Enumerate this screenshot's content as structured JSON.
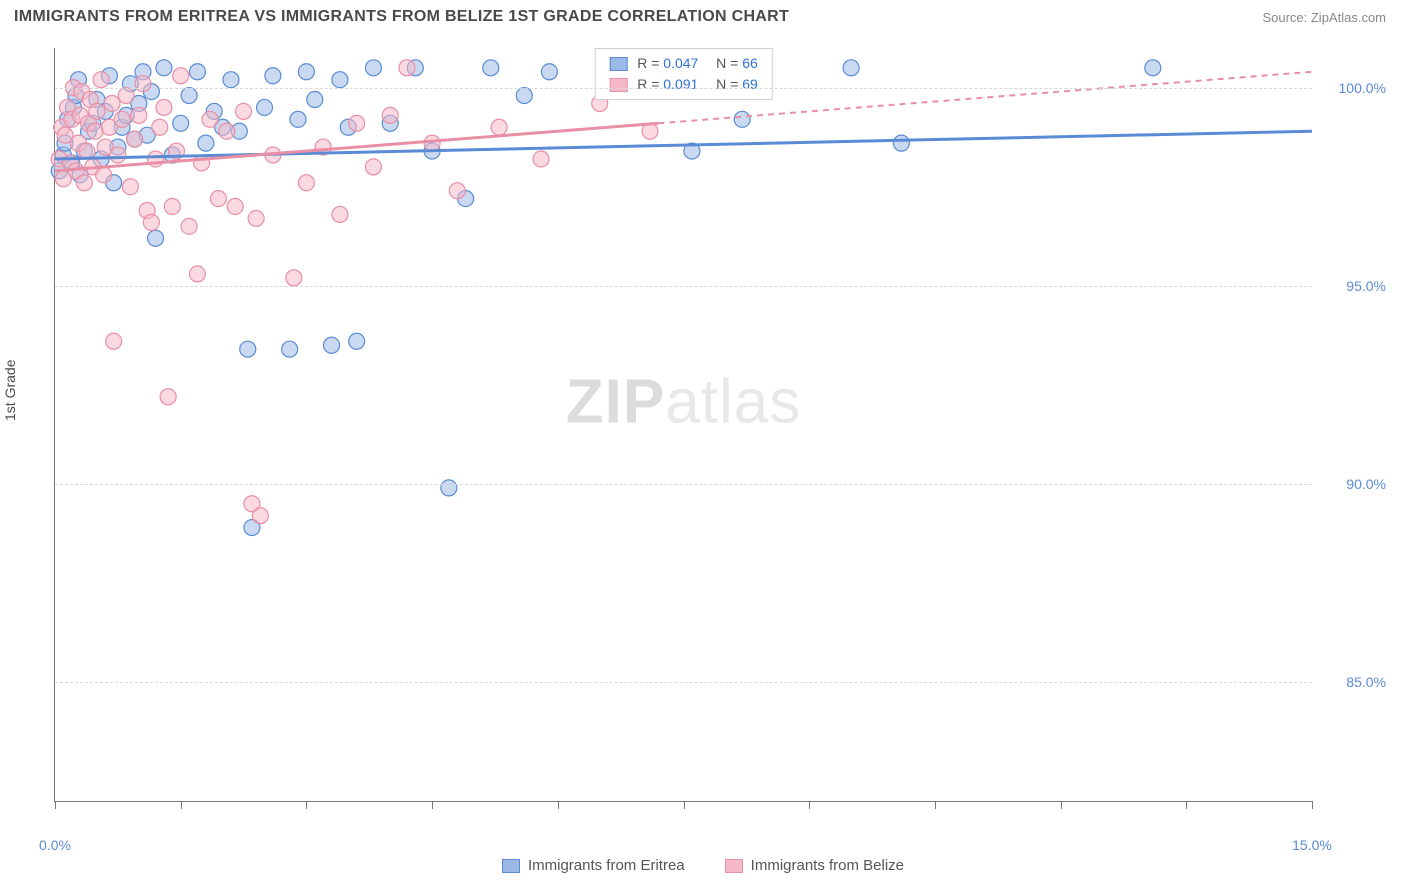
{
  "header": {
    "title": "IMMIGRANTS FROM ERITREA VS IMMIGRANTS FROM BELIZE 1ST GRADE CORRELATION CHART",
    "source": "Source: ZipAtlas.com"
  },
  "chart": {
    "type": "scatter",
    "y_axis_label": "1st Grade",
    "xlim": [
      0,
      15
    ],
    "ylim": [
      82,
      101
    ],
    "y_ticks": [
      85,
      90,
      95,
      100
    ],
    "y_tick_labels": [
      "85.0%",
      "90.0%",
      "95.0%",
      "100.0%"
    ],
    "x_ticks": [
      0,
      1.5,
      3,
      4.5,
      6,
      7.5,
      9,
      10.5,
      12,
      13.5,
      15
    ],
    "x_tick_labels": {
      "start": "0.0%",
      "end": "15.0%"
    },
    "background_color": "#ffffff",
    "grid_color": "#d8d8d8",
    "axis_color": "#777777",
    "tick_label_color": "#5b8bd4",
    "marker_radius": 8,
    "marker_opacity": 0.55,
    "watermark": {
      "bold": "ZIP",
      "rest": "atlas"
    },
    "series": [
      {
        "name": "Immigrants from Eritrea",
        "color_fill": "#9cb9e6",
        "color_stroke": "#5b8bd4",
        "R": "0.047",
        "N": "66",
        "trend": {
          "x1": 0,
          "y1": 98.2,
          "x2": 15,
          "y2": 98.9,
          "solid_until_x": 15
        },
        "points": [
          [
            0.05,
            97.9
          ],
          [
            0.1,
            98.3
          ],
          [
            0.12,
            98.6
          ],
          [
            0.15,
            99.2
          ],
          [
            0.2,
            98.1
          ],
          [
            0.22,
            99.5
          ],
          [
            0.25,
            99.8
          ],
          [
            0.28,
            100.2
          ],
          [
            0.3,
            97.8
          ],
          [
            0.35,
            98.4
          ],
          [
            0.4,
            98.9
          ],
          [
            0.45,
            99.1
          ],
          [
            0.5,
            99.7
          ],
          [
            0.55,
            98.2
          ],
          [
            0.6,
            99.4
          ],
          [
            0.65,
            100.3
          ],
          [
            0.7,
            97.6
          ],
          [
            0.75,
            98.5
          ],
          [
            0.8,
            99.0
          ],
          [
            0.85,
            99.3
          ],
          [
            0.9,
            100.1
          ],
          [
            0.95,
            98.7
          ],
          [
            1.0,
            99.6
          ],
          [
            1.05,
            100.4
          ],
          [
            1.1,
            98.8
          ],
          [
            1.15,
            99.9
          ],
          [
            1.2,
            96.2
          ],
          [
            1.3,
            100.5
          ],
          [
            1.4,
            98.3
          ],
          [
            1.5,
            99.1
          ],
          [
            1.6,
            99.8
          ],
          [
            1.7,
            100.4
          ],
          [
            1.8,
            98.6
          ],
          [
            1.9,
            99.4
          ],
          [
            2.0,
            99.0
          ],
          [
            2.1,
            100.2
          ],
          [
            2.2,
            98.9
          ],
          [
            2.3,
            93.4
          ],
          [
            2.35,
            88.9
          ],
          [
            2.5,
            99.5
          ],
          [
            2.6,
            100.3
          ],
          [
            2.8,
            93.4
          ],
          [
            2.9,
            99.2
          ],
          [
            3.0,
            100.4
          ],
          [
            3.1,
            99.7
          ],
          [
            3.3,
            93.5
          ],
          [
            3.4,
            100.2
          ],
          [
            3.5,
            99.0
          ],
          [
            3.6,
            93.6
          ],
          [
            3.8,
            100.5
          ],
          [
            4.0,
            99.1
          ],
          [
            4.3,
            100.5
          ],
          [
            4.5,
            98.4
          ],
          [
            4.7,
            89.9
          ],
          [
            4.9,
            97.2
          ],
          [
            5.2,
            100.5
          ],
          [
            5.6,
            99.8
          ],
          [
            5.9,
            100.4
          ],
          [
            6.8,
            100.4
          ],
          [
            7.6,
            98.4
          ],
          [
            8.2,
            99.2
          ],
          [
            9.5,
            100.5
          ],
          [
            10.1,
            98.6
          ],
          [
            13.1,
            100.5
          ]
        ]
      },
      {
        "name": "Immigrants from Belize",
        "color_fill": "#f5b9c8",
        "color_stroke": "#e88fa6",
        "R": "0.091",
        "N": "69",
        "trend": {
          "x1": 0,
          "y1": 97.9,
          "x2": 15,
          "y2": 100.4,
          "solid_until_x": 7.2
        },
        "points": [
          [
            0.05,
            98.2
          ],
          [
            0.08,
            99.0
          ],
          [
            0.1,
            97.7
          ],
          [
            0.12,
            98.8
          ],
          [
            0.15,
            99.5
          ],
          [
            0.18,
            98.1
          ],
          [
            0.2,
            99.2
          ],
          [
            0.22,
            100.0
          ],
          [
            0.25,
            97.9
          ],
          [
            0.28,
            98.6
          ],
          [
            0.3,
            99.3
          ],
          [
            0.32,
            99.9
          ],
          [
            0.35,
            97.6
          ],
          [
            0.38,
            98.4
          ],
          [
            0.4,
            99.1
          ],
          [
            0.42,
            99.7
          ],
          [
            0.45,
            98.0
          ],
          [
            0.48,
            98.9
          ],
          [
            0.5,
            99.4
          ],
          [
            0.55,
            100.2
          ],
          [
            0.58,
            97.8
          ],
          [
            0.6,
            98.5
          ],
          [
            0.65,
            99.0
          ],
          [
            0.68,
            99.6
          ],
          [
            0.7,
            93.6
          ],
          [
            0.75,
            98.3
          ],
          [
            0.8,
            99.2
          ],
          [
            0.85,
            99.8
          ],
          [
            0.9,
            97.5
          ],
          [
            0.95,
            98.7
          ],
          [
            1.0,
            99.3
          ],
          [
            1.05,
            100.1
          ],
          [
            1.1,
            96.9
          ],
          [
            1.15,
            96.6
          ],
          [
            1.2,
            98.2
          ],
          [
            1.25,
            99.0
          ],
          [
            1.3,
            99.5
          ],
          [
            1.35,
            92.2
          ],
          [
            1.4,
            97.0
          ],
          [
            1.45,
            98.4
          ],
          [
            1.5,
            100.3
          ],
          [
            1.6,
            96.5
          ],
          [
            1.7,
            95.3
          ],
          [
            1.75,
            98.1
          ],
          [
            1.85,
            99.2
          ],
          [
            1.95,
            97.2
          ],
          [
            2.05,
            98.9
          ],
          [
            2.15,
            97.0
          ],
          [
            2.25,
            99.4
          ],
          [
            2.35,
            89.5
          ],
          [
            2.4,
            96.7
          ],
          [
            2.45,
            89.2
          ],
          [
            2.6,
            98.3
          ],
          [
            2.85,
            95.2
          ],
          [
            3.0,
            97.6
          ],
          [
            3.2,
            98.5
          ],
          [
            3.4,
            96.8
          ],
          [
            3.6,
            99.1
          ],
          [
            3.8,
            98.0
          ],
          [
            4.0,
            99.3
          ],
          [
            4.2,
            100.5
          ],
          [
            4.5,
            98.6
          ],
          [
            4.8,
            97.4
          ],
          [
            5.3,
            99.0
          ],
          [
            5.8,
            98.2
          ],
          [
            6.5,
            99.6
          ],
          [
            7.1,
            98.9
          ]
        ]
      }
    ],
    "legend_bottom": [
      {
        "label": "Immigrants from Eritrea"
      },
      {
        "label": "Immigrants from Belize"
      }
    ]
  }
}
